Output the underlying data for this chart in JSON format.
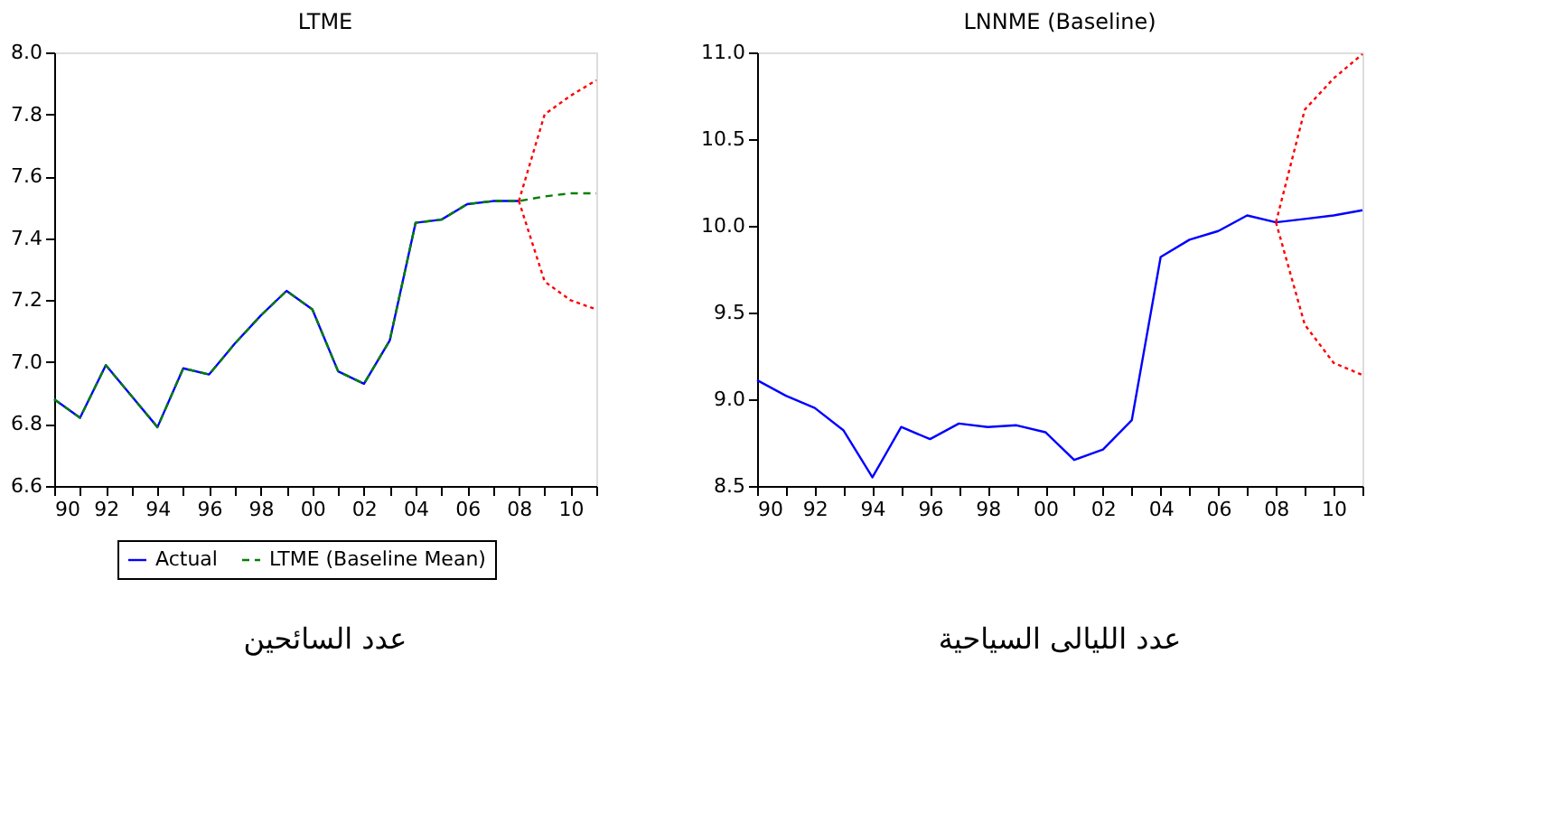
{
  "chart_data": [
    {
      "type": "line",
      "title": "LTME",
      "x": [
        1990,
        1991,
        1992,
        1993,
        1994,
        1995,
        1996,
        1997,
        1998,
        1999,
        2000,
        2001,
        2002,
        2003,
        2004,
        2005,
        2006,
        2007,
        2008,
        2009,
        2010,
        2011
      ],
      "series": [
        {
          "name": "Actual",
          "color": "#0000ff",
          "line_style": "solid",
          "values": [
            6.88,
            6.82,
            6.99,
            6.89,
            6.79,
            6.98,
            6.96,
            7.06,
            7.15,
            7.23,
            7.17,
            6.97,
            6.93,
            7.07,
            7.45,
            7.46,
            7.51,
            7.52,
            7.52,
            null,
            null,
            null
          ]
        },
        {
          "name": "LTME (Baseline Mean)",
          "color": "#008000",
          "line_style": "dashed",
          "values": [
            6.88,
            6.82,
            6.99,
            6.89,
            6.79,
            6.98,
            6.96,
            7.06,
            7.15,
            7.23,
            7.17,
            6.97,
            6.93,
            7.07,
            7.45,
            7.46,
            7.51,
            7.52,
            7.52,
            7.535,
            7.545,
            7.545
          ]
        },
        {
          "color": "#ff0000",
          "line_style": "dotted",
          "x": [
            2008,
            2009,
            2010,
            2011
          ],
          "values": [
            7.52,
            7.8,
            7.86,
            7.91
          ]
        },
        {
          "color": "#ff0000",
          "line_style": "dotted",
          "x": [
            2008,
            2009,
            2010,
            2011
          ],
          "values": [
            7.52,
            7.26,
            7.2,
            7.17
          ]
        }
      ],
      "xlim": [
        1990,
        2011
      ],
      "xticks": [
        {
          "value": 1990,
          "label": "90"
        },
        {
          "value": 1991,
          "label": null
        },
        {
          "value": 1992,
          "label": "92"
        },
        {
          "value": 1993,
          "label": null
        },
        {
          "value": 1994,
          "label": "94"
        },
        {
          "value": 1995,
          "label": null
        },
        {
          "value": 1996,
          "label": "96"
        },
        {
          "value": 1997,
          "label": null
        },
        {
          "value": 1998,
          "label": "98"
        },
        {
          "value": 1999,
          "label": null
        },
        {
          "value": 2000,
          "label": "00"
        },
        {
          "value": 2001,
          "label": null
        },
        {
          "value": 2002,
          "label": "02"
        },
        {
          "value": 2003,
          "label": null
        },
        {
          "value": 2004,
          "label": "04"
        },
        {
          "value": 2005,
          "label": null
        },
        {
          "value": 2006,
          "label": "06"
        },
        {
          "value": 2007,
          "label": null
        },
        {
          "value": 2008,
          "label": "08"
        },
        {
          "value": 2009,
          "label": null
        },
        {
          "value": 2010,
          "label": "10"
        },
        {
          "value": 2011,
          "label": null
        }
      ],
      "ylim": [
        6.6,
        8.0
      ],
      "yticks": [
        6.6,
        6.8,
        {
          "value": 7,
          "label": "7.0"
        },
        7.2,
        7.4,
        7.6,
        7.8,
        {
          "value": 8,
          "label": "8.0"
        }
      ],
      "grid": false,
      "legend": "bottom",
      "annotations": [
        "عدد السائحين"
      ]
    },
    {
      "type": "line",
      "title": "LNNME (Baseline)",
      "x": [
        1990,
        1991,
        1992,
        1993,
        1994,
        1995,
        1996,
        1997,
        1998,
        1999,
        2000,
        2001,
        2002,
        2003,
        2004,
        2005,
        2006,
        2007,
        2008,
        2009,
        2010,
        2011
      ],
      "series": [
        {
          "color": "#0000ff",
          "line_style": "solid",
          "values": [
            9.11,
            9.02,
            8.95,
            8.82,
            8.55,
            8.84,
            8.77,
            8.86,
            8.84,
            8.85,
            8.81,
            8.65,
            8.71,
            8.88,
            9.82,
            9.92,
            9.97,
            10.06,
            10.02,
            10.04,
            10.06,
            10.09
          ]
        },
        {
          "color": "#ff0000",
          "line_style": "dotted",
          "x": [
            2008,
            2009,
            2010,
            2011
          ],
          "values": [
            10.02,
            10.67,
            10.85,
            10.99
          ]
        },
        {
          "color": "#ff0000",
          "line_style": "dotted",
          "x": [
            2008,
            2009,
            2010,
            2011
          ],
          "values": [
            10.02,
            9.43,
            9.21,
            9.14
          ]
        }
      ],
      "xlim": [
        1990,
        2011
      ],
      "xticks": [
        {
          "value": 1990,
          "label": "90"
        },
        {
          "value": 1991,
          "label": null
        },
        {
          "value": 1992,
          "label": "92"
        },
        {
          "value": 1993,
          "label": null
        },
        {
          "value": 1994,
          "label": "94"
        },
        {
          "value": 1995,
          "label": null
        },
        {
          "value": 1996,
          "label": "96"
        },
        {
          "value": 1997,
          "label": null
        },
        {
          "value": 1998,
          "label": "98"
        },
        {
          "value": 1999,
          "label": null
        },
        {
          "value": 2000,
          "label": "00"
        },
        {
          "value": 2001,
          "label": null
        },
        {
          "value": 2002,
          "label": "02"
        },
        {
          "value": 2003,
          "label": null
        },
        {
          "value": 2004,
          "label": "04"
        },
        {
          "value": 2005,
          "label": null
        },
        {
          "value": 2006,
          "label": "06"
        },
        {
          "value": 2007,
          "label": null
        },
        {
          "value": 2008,
          "label": "08"
        },
        {
          "value": 2009,
          "label": null
        },
        {
          "value": 2010,
          "label": "10"
        },
        {
          "value": 2011,
          "label": null
        }
      ],
      "ylim": [
        8.5,
        11.0
      ],
      "yticks": [
        8.5,
        {
          "value": 9,
          "label": "9.0"
        },
        9.5,
        {
          "value": 10,
          "label": "10.0"
        },
        10.5,
        {
          "value": 11,
          "label": "11.0"
        }
      ],
      "grid": false,
      "annotations": [
        "عدد الليالى السياحية"
      ]
    }
  ]
}
